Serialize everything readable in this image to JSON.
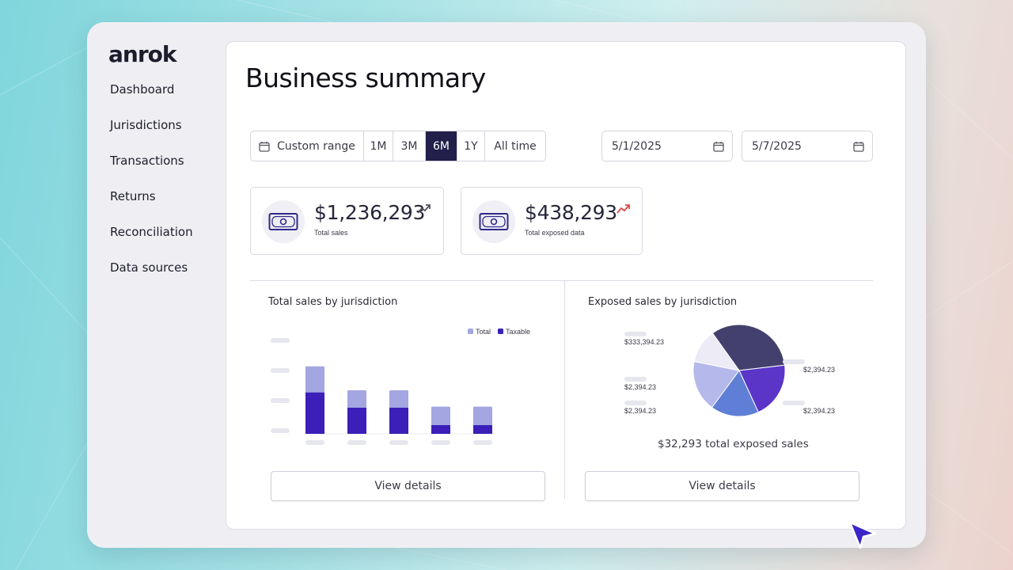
{
  "app": {
    "logo": "anrok"
  },
  "sidebar": {
    "items": [
      {
        "label": "Dashboard"
      },
      {
        "label": "Jurisdictions"
      },
      {
        "label": "Transactions"
      },
      {
        "label": "Returns"
      },
      {
        "label": "Reconciliation"
      },
      {
        "label": "Data sources"
      }
    ]
  },
  "main": {
    "title": "Business summary",
    "range": {
      "custom_label": "Custom range",
      "options": [
        "1M",
        "3M",
        "6M",
        "1Y",
        "All time"
      ],
      "selected": "6M"
    },
    "dates": {
      "start": "5/1/2025",
      "end": "5/7/2025"
    },
    "kpis": [
      {
        "value": "$1,236,293",
        "label": "Total sales",
        "trend": "up",
        "trend_color": "#55555f"
      },
      {
        "value": "$438,293",
        "label": "Total exposed data",
        "trend": "up",
        "trend_color": "#e04848"
      }
    ],
    "sales_section": {
      "title": "Total sales by jurisdiction",
      "button": "View details"
    },
    "exposed_section": {
      "title": "Exposed sales by jurisdiction",
      "total_text": "$32,293 total exposed sales",
      "button": "View details"
    }
  },
  "colors": {
    "accent_dark": "#22204a",
    "total_bar": "#a3a6e0",
    "taxable_bar": "#3b1fb8",
    "placeholder": "#e6e6ee"
  },
  "chart_data": [
    {
      "type": "bar",
      "title": "Total sales by jurisdiction",
      "legend": "top-right",
      "categories": [
        "",
        "",
        "",
        "",
        ""
      ],
      "series": [
        {
          "name": "Total",
          "color": "#a3a6e0",
          "values": [
            3.1,
            2.0,
            2.0,
            1.25,
            1.25
          ]
        },
        {
          "name": "Taxable",
          "color": "#3b1fb8",
          "values": [
            1.9,
            1.2,
            1.2,
            0.4,
            0.4
          ]
        }
      ],
      "ylim": [
        0,
        4
      ]
    },
    {
      "type": "pie",
      "title": "Exposed sales by jurisdiction",
      "slices": [
        {
          "label": "$333,394.23",
          "value": 33,
          "color": "#43406e"
        },
        {
          "label": "$2,394.23",
          "value": 20,
          "color": "#5a35c8"
        },
        {
          "label": "$2,394.23",
          "value": 17,
          "color": "#5f7fd6"
        },
        {
          "label": "$2,394.23",
          "value": 18,
          "color": "#b4b8ea"
        },
        {
          "label": "$2,394.23",
          "value": 12,
          "color": "#ecebf6"
        }
      ]
    }
  ]
}
